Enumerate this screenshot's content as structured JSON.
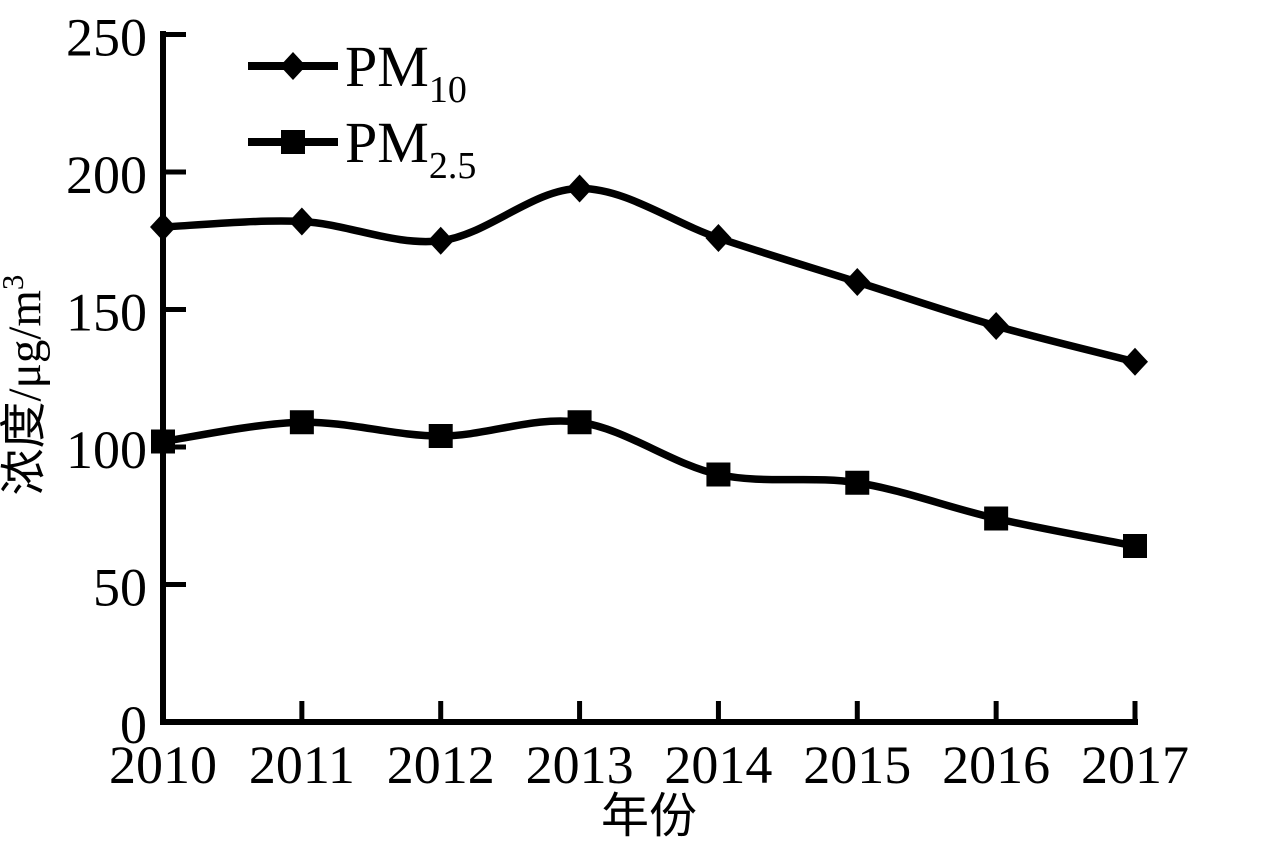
{
  "chart_data": {
    "type": "line",
    "title": "",
    "x": [
      2010,
      2011,
      2012,
      2013,
      2014,
      2015,
      2016,
      2017
    ],
    "categories": [
      "2010",
      "2011",
      "2012",
      "2013",
      "2014",
      "2015",
      "2016",
      "2017"
    ],
    "series": [
      {
        "name": "PM10",
        "label": {
          "main": "PM",
          "sub": "10"
        },
        "marker": "diamond",
        "values": [
          180,
          182,
          175,
          194,
          176,
          160,
          144,
          131
        ]
      },
      {
        "name": "PM2.5",
        "label": {
          "main": "PM",
          "sub": "2.5"
        },
        "marker": "square",
        "values": [
          102,
          109,
          104,
          109,
          90,
          87,
          74,
          64
        ]
      }
    ],
    "xlabel": "年份",
    "ylabel": {
      "main": "浓度/μg/m",
      "sup": "3"
    },
    "ylim": [
      0,
      250
    ],
    "yticks": [
      0,
      50,
      100,
      150,
      200,
      250
    ],
    "grid": false,
    "legend_position": "top-left",
    "line_style": "smooth",
    "colors": {
      "line": "#000000",
      "text": "#000000",
      "background": "#ffffff"
    }
  }
}
